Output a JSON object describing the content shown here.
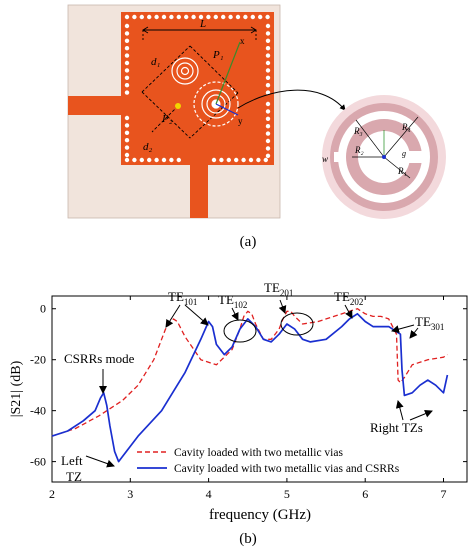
{
  "figure_a": {
    "caption": "(a)",
    "dims": {
      "L": "L",
      "d1": "d₁",
      "d2": "d₂",
      "P1": "P₁",
      "P2": "P₂"
    },
    "axes": {
      "x": "x",
      "y": "y"
    },
    "inset": {
      "R1": "R₁",
      "R2": "R₂",
      "R3": "R₃",
      "R4": "R₄",
      "w": "w",
      "g": "g"
    },
    "colors": {
      "substrate": "#f1e4dc",
      "cavity": "#e8541e",
      "inset_ring": "#d9a8ae",
      "inset_bg": "#f3d9dc"
    }
  },
  "figure_b": {
    "caption": "(b)",
    "colors": {
      "series1": "#e02020",
      "series2": "#1a2fd0"
    },
    "annotations": {
      "te101_base": "TE",
      "te101_sub": "101",
      "te102_base": "TE",
      "te102_sub": "102",
      "te201_base": "TE",
      "te201_sub": "201",
      "te202_base": "TE",
      "te202_sub": "202",
      "te301_base": "TE",
      "te301_sub": "301",
      "csrrs_mode": "CSRRs mode",
      "left_tz_1": "Left",
      "left_tz_2": "TZ",
      "right_tzs": "Right TZs"
    }
  },
  "chart_data": {
    "type": "line",
    "xlabel": "frequency (GHz)",
    "ylabel": "|S21| (dB)",
    "xlim": [
      2,
      7.3
    ],
    "ylim": [
      -68,
      5
    ],
    "xticks": [
      2,
      3,
      4,
      5,
      6,
      7
    ],
    "yticks": [
      0,
      -20,
      -40,
      -60
    ],
    "legend_position": "bottom-right",
    "grid": false,
    "series": [
      {
        "name": "Cavity loaded with two metallic vias",
        "style": "dashed",
        "x": [
          2.0,
          2.3,
          2.6,
          2.9,
          3.1,
          3.3,
          3.45,
          3.55,
          3.6,
          3.7,
          3.9,
          4.1,
          4.3,
          4.4,
          4.45,
          4.5,
          4.55,
          4.6,
          4.7,
          4.8,
          4.9,
          4.95,
          5.0,
          5.05,
          5.1,
          5.2,
          5.4,
          5.6,
          5.8,
          5.9,
          5.95,
          6.0,
          6.1,
          6.2,
          6.3,
          6.4,
          6.42,
          6.45,
          6.5,
          6.6,
          6.8,
          7.0,
          7.05
        ],
        "values": [
          -50,
          -47,
          -42,
          -36,
          -30,
          -20,
          -8,
          -4,
          -5,
          -11,
          -20,
          -22,
          -16,
          -8,
          -3,
          -1,
          -2,
          -6,
          -12,
          -12,
          -8,
          -4,
          -1,
          -1,
          -3,
          -6,
          -5,
          -3,
          -1,
          0,
          -1,
          -2,
          -3,
          -3,
          -4,
          -10,
          -28,
          -29,
          -27,
          -22,
          -20,
          -19,
          -18
        ]
      },
      {
        "name": "Cavity loaded with two metallic vias and CSRRs",
        "style": "solid",
        "x": [
          2.0,
          2.2,
          2.4,
          2.55,
          2.62,
          2.66,
          2.7,
          2.74,
          2.8,
          2.85,
          2.9,
          3.1,
          3.4,
          3.7,
          3.9,
          4.0,
          4.05,
          4.1,
          4.2,
          4.3,
          4.4,
          4.5,
          4.6,
          4.7,
          4.8,
          4.9,
          5.0,
          5.1,
          5.2,
          5.3,
          5.5,
          5.7,
          5.8,
          5.9,
          6.0,
          6.1,
          6.2,
          6.3,
          6.4,
          6.45,
          6.47,
          6.5,
          6.6,
          6.7,
          6.8,
          6.9,
          7.0,
          7.05
        ],
        "values": [
          -50,
          -48,
          -44,
          -40,
          -35,
          -33,
          -38,
          -46,
          -56,
          -60,
          -58,
          -50,
          -40,
          -25,
          -12,
          -5,
          -7,
          -14,
          -18,
          -15,
          -8,
          -4,
          -7,
          -12,
          -13,
          -10,
          -6,
          -8,
          -12,
          -13,
          -12,
          -7,
          -4,
          -2,
          -5,
          -7,
          -7,
          -7,
          -9,
          -10,
          -24,
          -34,
          -33,
          -30,
          -28,
          -30,
          -33,
          -26
        ]
      }
    ]
  }
}
